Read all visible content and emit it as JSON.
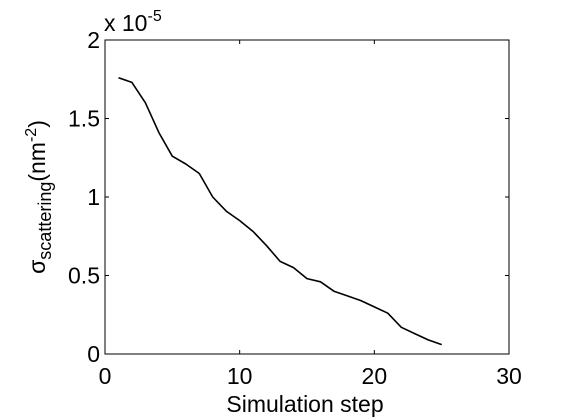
{
  "chart_data": {
    "type": "line",
    "title": "",
    "xlabel": "Simulation step",
    "ylabel": {
      "sigma": "σ",
      "subscript": "scattering",
      "unit_open": "(nm",
      "unit_exponent": "-2",
      "unit_close": ")"
    },
    "y_multiplier": {
      "prefix": "x 10",
      "exponent": "-5"
    },
    "xlim": [
      0,
      30
    ],
    "ylim": [
      0,
      2
    ],
    "xticks": [
      0,
      10,
      20,
      30
    ],
    "xtick_labels": [
      "0",
      "10",
      "20",
      "30"
    ],
    "yticks": [
      0,
      0.5,
      1,
      1.5,
      2
    ],
    "ytick_labels": [
      "0",
      "0.5",
      "1",
      "1.5",
      "2"
    ],
    "grid": false,
    "legend": "none",
    "series": [
      {
        "color": "#000000",
        "x": [
          1,
          2,
          3,
          4,
          5,
          6,
          7,
          8,
          9,
          10,
          11,
          12,
          13,
          14,
          15,
          16,
          17,
          18,
          19,
          20,
          21,
          22,
          23,
          24,
          25
        ],
        "y": [
          1.76,
          1.73,
          1.6,
          1.41,
          1.26,
          1.21,
          1.15,
          1.0,
          0.91,
          0.85,
          0.78,
          0.69,
          0.59,
          0.55,
          0.48,
          0.46,
          0.4,
          0.37,
          0.34,
          0.3,
          0.26,
          0.17,
          0.13,
          0.09,
          0.06
        ]
      }
    ]
  }
}
